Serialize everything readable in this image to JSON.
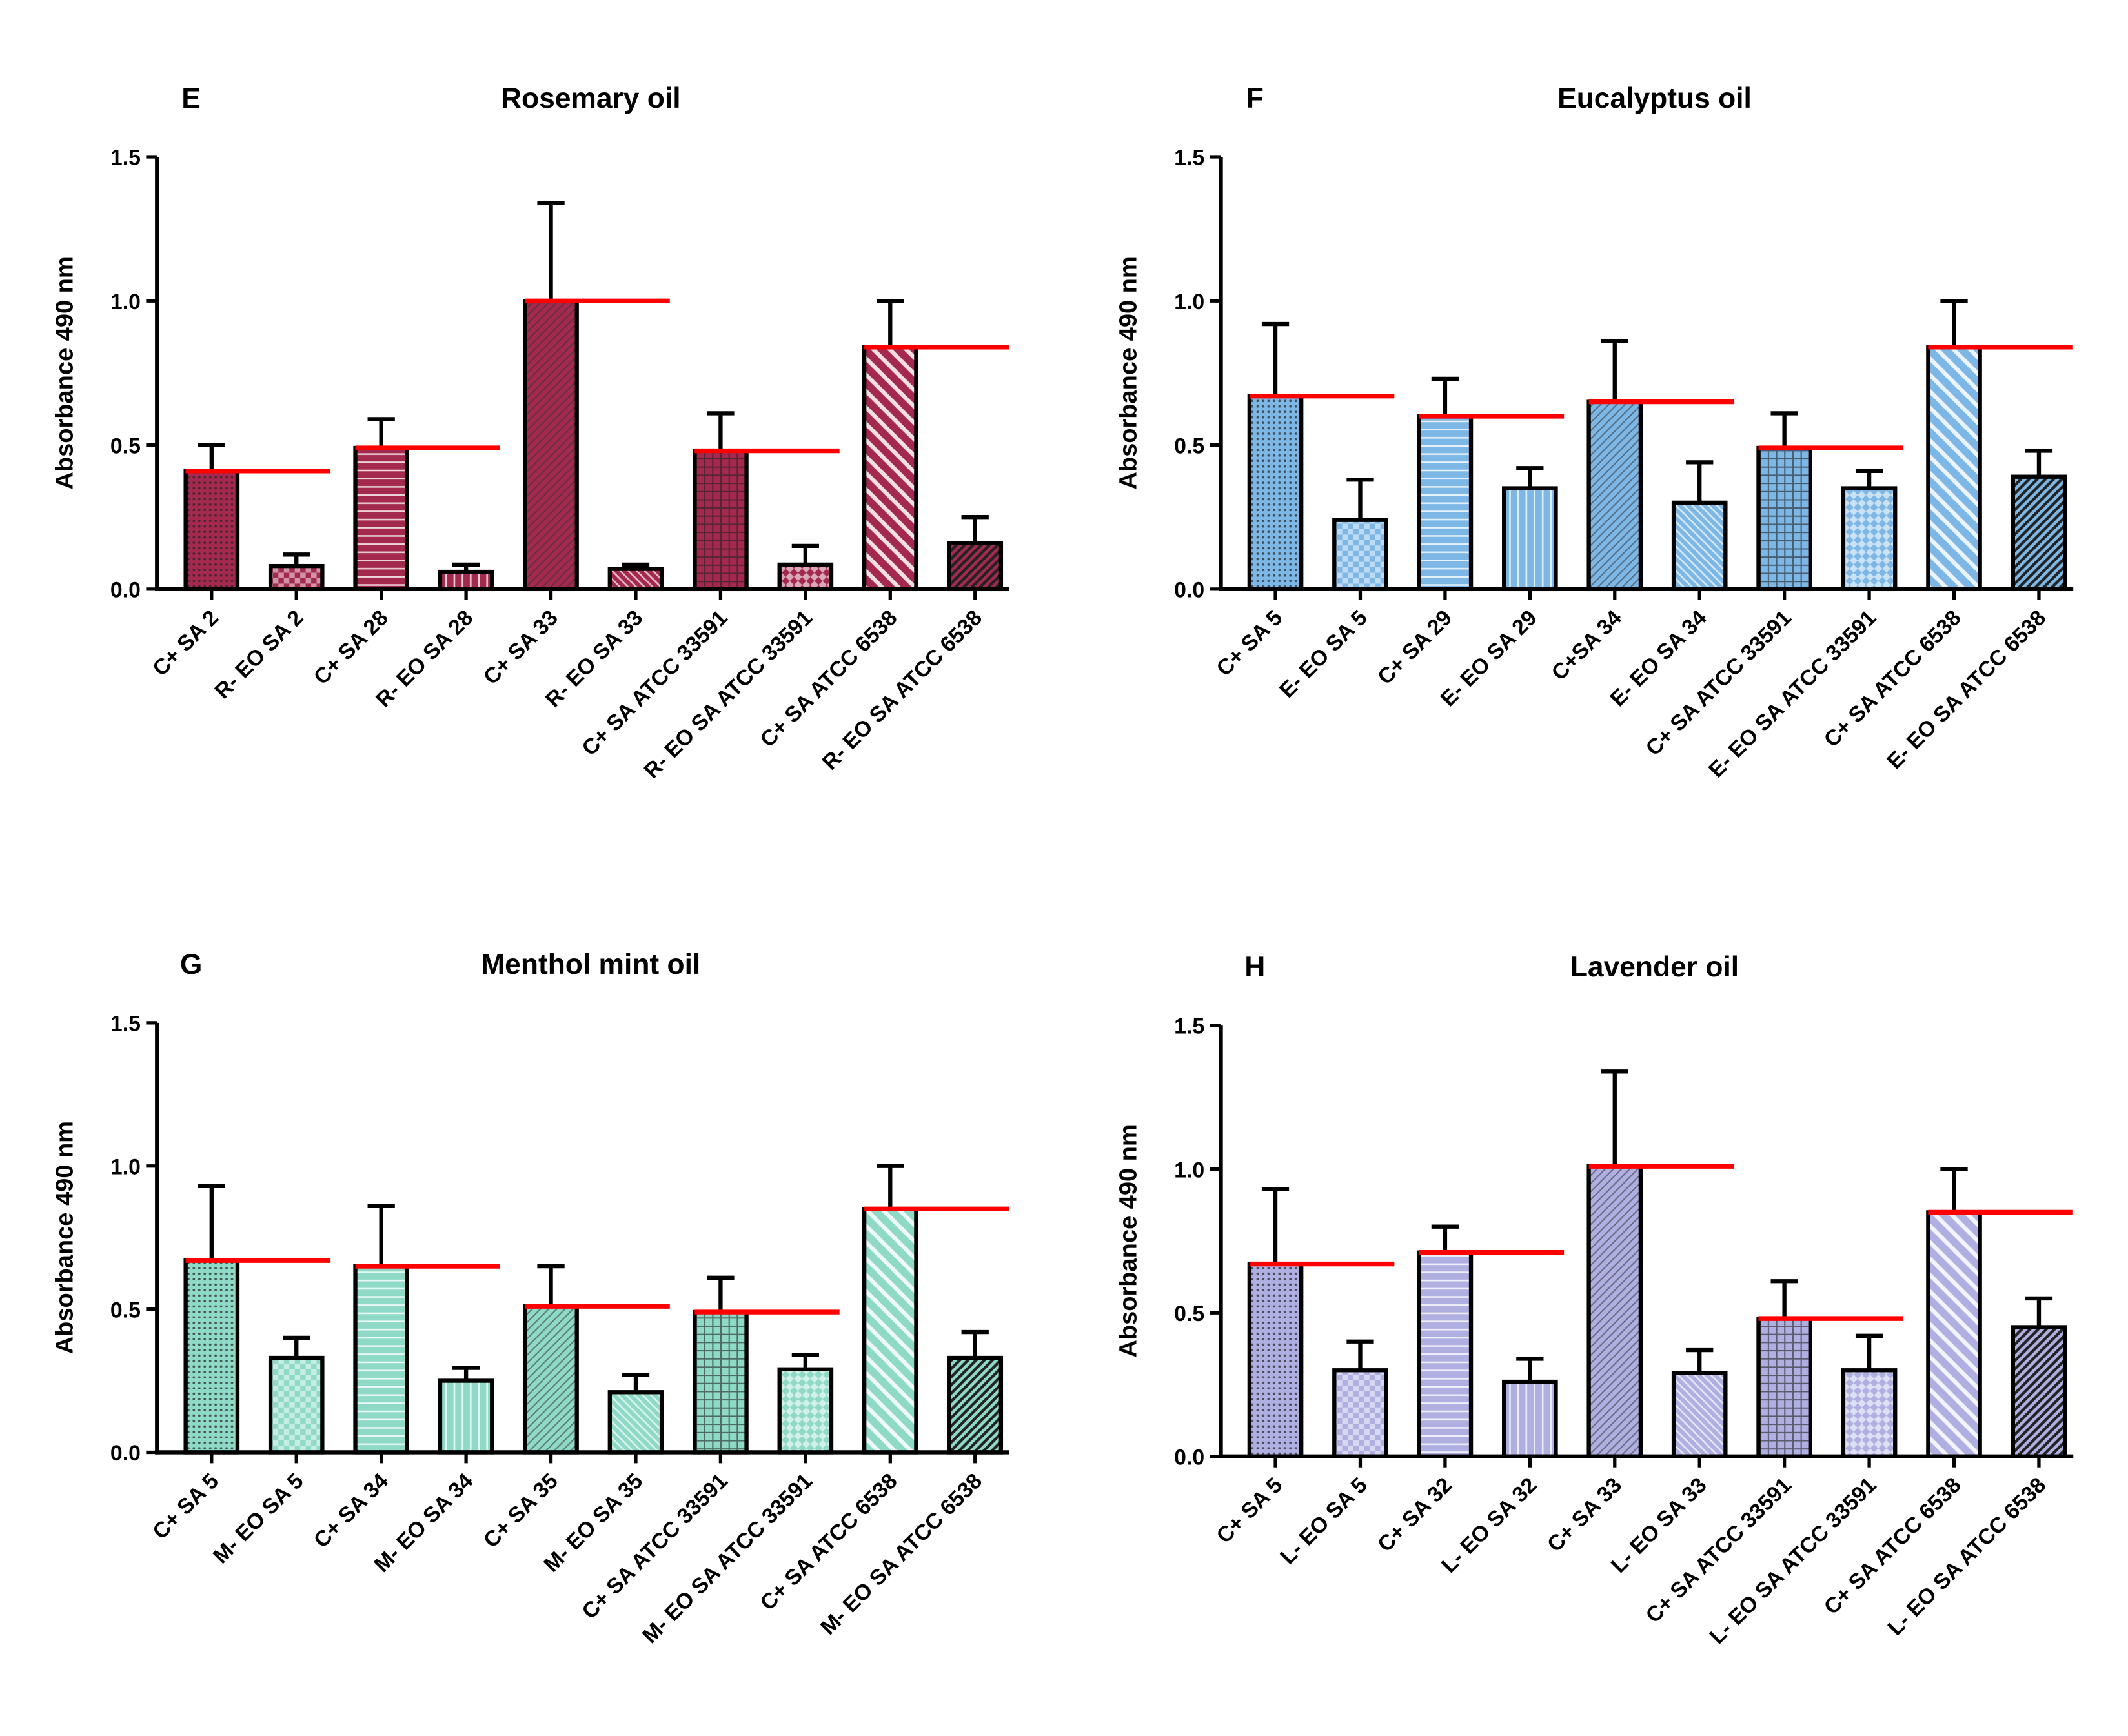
{
  "chart_data": [
    {
      "type": "bar",
      "panel": "E",
      "title": "Rosemary oil",
      "ylabel": "Absorbance 490 nm",
      "color": "#a3294f",
      "categories": [
        "C+ SA 2",
        "R- EO SA 2",
        "C+ SA 28",
        "R- EO SA 28",
        "C+ SA 33",
        "R- EO SA 33",
        "C+ SA ATCC 33591",
        "R- EO SA ATCC 33591",
        "C+ SA ATCC 6538",
        "R- EO SA ATCC 6538"
      ],
      "values": [
        0.41,
        0.08,
        0.49,
        0.06,
        1.0,
        0.07,
        0.48,
        0.085,
        0.84,
        0.16
      ],
      "errors": [
        0.09,
        0.04,
        0.1,
        0.025,
        0.34,
        0.015,
        0.13,
        0.065,
        0.16,
        0.09
      ],
      "ylim": [
        0,
        1.5
      ],
      "yticks": [
        {
          "value": 0,
          "label": "0.0"
        },
        0.5,
        {
          "value": 1,
          "label": "1.0"
        },
        1.5
      ]
    },
    {
      "type": "bar",
      "panel": "F",
      "title": "Eucalyptus oil",
      "ylabel": "Absorbance 490 nm",
      "color": "#7db7e6",
      "categories": [
        "C+ SA 5",
        "E- EO SA 5",
        "C+ SA 29",
        "E- EO SA 29",
        "C+SA 34",
        "E- EO SA 34",
        "C+ SA ATCC 33591",
        "E- EO SA ATCC 33591",
        "C+ SA ATCC 6538",
        "E- EO SA ATCC 6538"
      ],
      "values": [
        0.67,
        0.24,
        0.6,
        0.35,
        0.65,
        0.3,
        0.49,
        0.35,
        0.84,
        0.39
      ],
      "errors": [
        0.25,
        0.14,
        0.13,
        0.07,
        0.21,
        0.14,
        0.12,
        0.06,
        0.16,
        0.09
      ],
      "ylim": [
        0,
        1.5
      ],
      "yticks": [
        {
          "value": 0,
          "label": "0.0"
        },
        0.5,
        {
          "value": 1,
          "label": "1.0"
        },
        1.5
      ]
    },
    {
      "type": "bar",
      "panel": "G",
      "title": "Menthol mint oil",
      "ylabel": "Absorbance 490 nm",
      "color": "#8edac6",
      "categories": [
        "C+ SA 5",
        "M- EO SA 5",
        "C+ SA 34",
        "M- EO SA 34",
        "C+ SA 35",
        "M- EO SA 35",
        "C+ SA ATCC 33591",
        "M- EO SA ATCC 33591",
        "C+ SA ATCC 6538",
        "M- EO SA ATCC 6538"
      ],
      "values": [
        0.67,
        0.33,
        0.65,
        0.25,
        0.51,
        0.21,
        0.49,
        0.29,
        0.85,
        0.33
      ],
      "errors": [
        0.26,
        0.07,
        0.21,
        0.045,
        0.14,
        0.06,
        0.12,
        0.05,
        0.15,
        0.09
      ],
      "ylim": [
        0,
        1.5
      ],
      "yticks": [
        {
          "value": 0,
          "label": "0.0"
        },
        0.5,
        {
          "value": 1,
          "label": "1.0"
        },
        1.5
      ]
    },
    {
      "type": "bar",
      "panel": "H",
      "title": "Lavender oil",
      "ylabel": "Absorbance 490 nm",
      "color": "#afafe2",
      "categories": [
        "C+ SA 5",
        "L- EO SA 5",
        "C+ SA 32",
        "L- EO SA 32",
        "C+ SA 33",
        "L- EO SA 33",
        "C+ SA ATCC 33591",
        "L- EO SA ATCC 33591",
        "C+ SA ATCC 6538",
        "L- EO SA ATCC 6538"
      ],
      "values": [
        0.67,
        0.3,
        0.71,
        0.26,
        1.01,
        0.29,
        0.48,
        0.3,
        0.85,
        0.45
      ],
      "errors": [
        0.26,
        0.1,
        0.09,
        0.08,
        0.33,
        0.08,
        0.13,
        0.12,
        0.15,
        0.1
      ],
      "ylim": [
        0,
        1.5
      ],
      "yticks": [
        {
          "value": 0,
          "label": "0.0"
        },
        0.5,
        {
          "value": 1,
          "label": "1.0"
        },
        1.5
      ]
    }
  ]
}
